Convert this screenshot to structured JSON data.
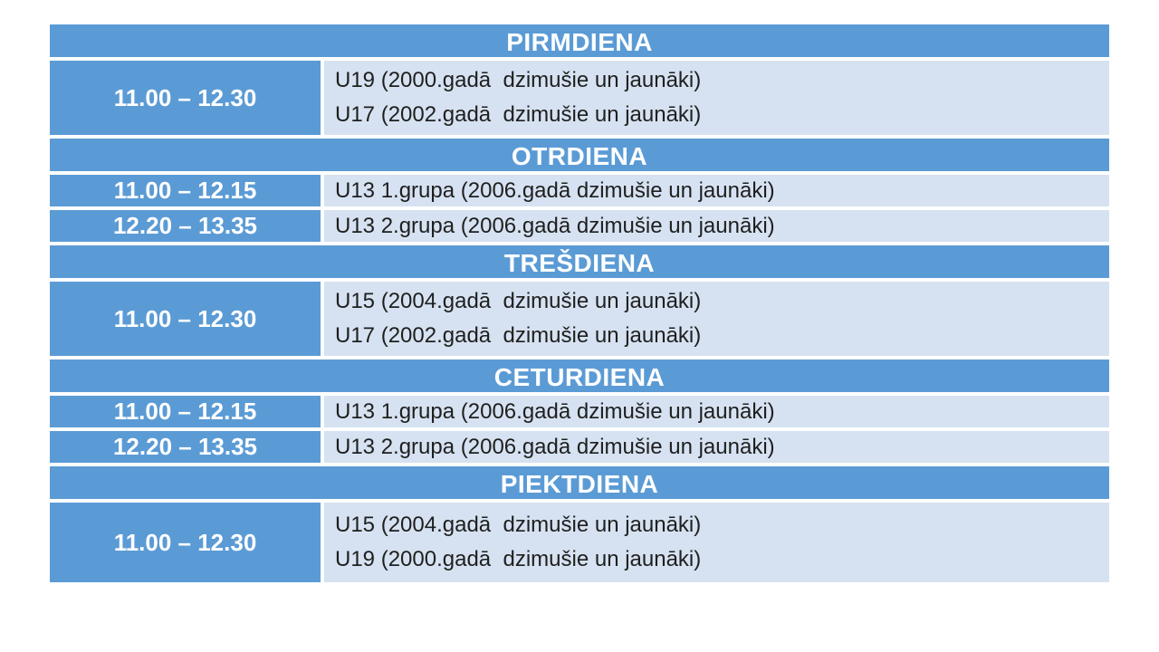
{
  "theme": {
    "header_bg": "#5B9BD5",
    "row_bg": "#D6E2F1",
    "border": "#FFFFFF",
    "header_text": "#FFFFFF",
    "time_text": "#FFFFFF",
    "group_text": "#1F1F1F",
    "page_bg": "#FFFFFF"
  },
  "schedule": {
    "days": [
      {
        "name": "PIRMDIENA",
        "slots": [
          {
            "time": "11.00 – 12.30",
            "groups": [
              "U19 (2000.gadā  dzimušie un jaunāki)",
              "U17 (2002.gadā  dzimušie un jaunāki)"
            ]
          }
        ]
      },
      {
        "name": "OTRDIENA",
        "slots": [
          {
            "time": "11.00 – 12.15",
            "groups": [
              "U13 1.grupa (2006.gadā dzimušie un jaunāki)"
            ]
          },
          {
            "time": "12.20 – 13.35",
            "groups": [
              "U13 2.grupa (2006.gadā dzimušie un jaunāki)"
            ]
          }
        ]
      },
      {
        "name": "TREŠDIENA",
        "slots": [
          {
            "time": "11.00 – 12.30",
            "groups": [
              "U15 (2004.gadā  dzimušie un jaunāki)",
              "U17 (2002.gadā  dzimušie un jaunāki)"
            ]
          }
        ]
      },
      {
        "name": "CETURDIENA",
        "slots": [
          {
            "time": "11.00 – 12.15",
            "groups": [
              "U13 1.grupa (2006.gadā dzimušie un jaunāki)"
            ]
          },
          {
            "time": "12.20 – 13.35",
            "groups": [
              "U13 2.grupa (2006.gadā dzimušie un jaunāki)"
            ]
          }
        ]
      },
      {
        "name": "PIEKTDIENA",
        "slots": [
          {
            "time": "11.00 – 12.30",
            "groups": [
              "U15 (2004.gadā  dzimušie un jaunāki)",
              "U19 (2000.gadā  dzimušie un jaunāki)"
            ]
          }
        ]
      }
    ]
  }
}
